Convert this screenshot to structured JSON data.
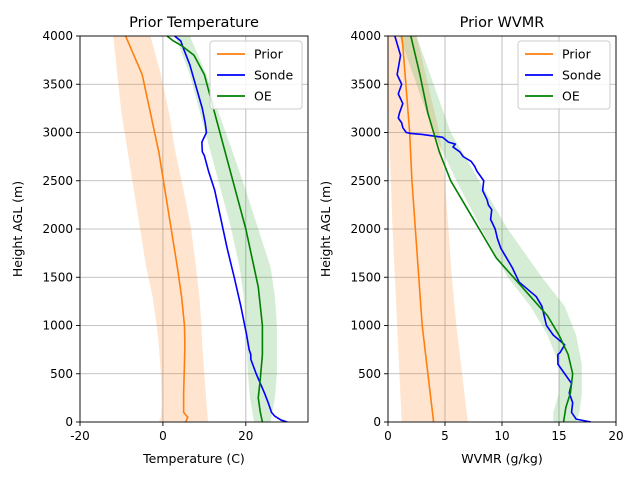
{
  "chart_data": [
    {
      "type": "line",
      "title": "Prior Temperature",
      "xlabel": "Temperature (C)",
      "ylabel": "Height AGL (m)",
      "xlim": [
        -20,
        35
      ],
      "ylim": [
        0,
        4000
      ],
      "xticks": [
        -20,
        0,
        20
      ],
      "yticks": [
        0,
        500,
        1000,
        1500,
        2000,
        2500,
        3000,
        3500,
        4000
      ],
      "grid": true,
      "legend": "top-right",
      "bands": [
        {
          "series": "Prior",
          "color": "#ff7f0e",
          "opacity": 0.2,
          "points": [
            [
              -1.0,
              0,
              11.0
            ],
            [
              -0.5,
              50,
              10.8
            ],
            [
              -0.3,
              200,
              10.5
            ],
            [
              -0.5,
              500,
              10.0
            ],
            [
              -1.0,
              800,
              9.5
            ],
            [
              -1.5,
              1000,
              9.3
            ],
            [
              -2.5,
              1300,
              8.8
            ],
            [
              -4.0,
              1600,
              8.0
            ],
            [
              -5.5,
              2000,
              6.8
            ],
            [
              -7.0,
              2400,
              5.0
            ],
            [
              -8.5,
              2800,
              3.0
            ],
            [
              -10.0,
              3200,
              1.5
            ],
            [
              -11.0,
              3600,
              -0.5
            ],
            [
              -12.0,
              4000,
              -3.0
            ]
          ]
        },
        {
          "series": "OE",
          "color": "#2ca02c",
          "opacity": 0.2,
          "points": [
            [
              22.0,
              0,
              26.0
            ],
            [
              21.0,
              250,
              27.0
            ],
            [
              20.5,
              500,
              27.5
            ],
            [
              20.0,
              1000,
              27.5
            ],
            [
              19.5,
              1300,
              27.0
            ],
            [
              18.5,
              1600,
              26.0
            ],
            [
              16.5,
              2000,
              23.0
            ],
            [
              14.0,
              2400,
              20.0
            ],
            [
              11.5,
              2800,
              16.8
            ],
            [
              9.0,
              3200,
              13.5
            ],
            [
              6.5,
              3600,
              10.5
            ],
            [
              3.0,
              4000,
              6.5
            ]
          ]
        }
      ],
      "series": [
        {
          "name": "Prior",
          "color": "#ff7f0e",
          "x": [
            5.5,
            6.0,
            5.0,
            5.0,
            5.2,
            5.3,
            5.2,
            4.5,
            3.5,
            2.0,
            0.5,
            -1.0,
            -3.0,
            -5.0,
            -7.0,
            -9.0
          ],
          "y": [
            0,
            50,
            100,
            300,
            600,
            800,
            1000,
            1300,
            1600,
            2000,
            2400,
            2800,
            3200,
            3600,
            3800,
            4000
          ]
        },
        {
          "name": "Sonde",
          "color": "#0000ff",
          "x": [
            30.0,
            28.5,
            27.0,
            26.2,
            25.4,
            24.5,
            23.5,
            22.5,
            21.2,
            21.2,
            20.8,
            20.2,
            18.8,
            17.2,
            15.5,
            14.0,
            12.5,
            11.0,
            10.0,
            9.5,
            9.4,
            10.5,
            10.2,
            9.5,
            8.5,
            7.5,
            6.5,
            4.7,
            4.3,
            2.8
          ],
          "y": [
            0,
            20,
            60,
            100,
            200,
            300,
            400,
            500,
            650,
            700,
            750,
            900,
            1200,
            1500,
            1800,
            2100,
            2400,
            2600,
            2760,
            2800,
            2900,
            3000,
            3100,
            3250,
            3400,
            3550,
            3700,
            3900,
            3950,
            4000
          ]
        },
        {
          "name": "OE",
          "color": "#008000",
          "x": [
            24.0,
            23.5,
            23.0,
            23.5,
            24.0,
            24.0,
            23.5,
            23.0,
            22.0,
            20.0,
            17.5,
            15.0,
            12.5,
            10.0,
            7.5,
            4.5,
            2.5,
            1.0
          ],
          "y": [
            0,
            100,
            250,
            450,
            700,
            1000,
            1200,
            1400,
            1600,
            2000,
            2400,
            2800,
            3200,
            3600,
            3800,
            3900,
            3950,
            4000
          ]
        }
      ]
    },
    {
      "type": "line",
      "title": "Prior WVMR",
      "xlabel": "WVMR (g/kg)",
      "ylabel": "Height AGL (m)",
      "xlim": [
        0,
        20
      ],
      "ylim": [
        0,
        4000
      ],
      "xticks": [
        0,
        5,
        10,
        15,
        20
      ],
      "yticks": [
        0,
        500,
        1000,
        1500,
        2000,
        2500,
        3000,
        3500,
        4000
      ],
      "grid": true,
      "legend": "top-right",
      "bands": [
        {
          "series": "Prior",
          "color": "#ff7f0e",
          "opacity": 0.2,
          "points": [
            [
              1.2,
              0,
              7.0
            ],
            [
              1.0,
              500,
              6.5
            ],
            [
              0.8,
              1000,
              6.0
            ],
            [
              0.6,
              1500,
              5.6
            ],
            [
              0.4,
              2000,
              5.3
            ],
            [
              0.25,
              2500,
              5.0
            ],
            [
              0.1,
              3000,
              4.5
            ],
            [
              0.0,
              3500,
              3.5
            ],
            [
              0.0,
              4000,
              2.5
            ]
          ]
        },
        {
          "series": "OE",
          "color": "#2ca02c",
          "opacity": 0.2,
          "points": [
            [
              14.5,
              0,
              16.5
            ],
            [
              14.5,
              100,
              16.8
            ],
            [
              15.0,
              300,
              17.0
            ],
            [
              15.0,
              600,
              17.0
            ],
            [
              14.0,
              900,
              16.5
            ],
            [
              12.5,
              1200,
              15.5
            ],
            [
              10.5,
              1500,
              13.5
            ],
            [
              8.2,
              2000,
              10.5
            ],
            [
              6.0,
              2500,
              8.0
            ],
            [
              4.0,
              3000,
              5.5
            ],
            [
              2.5,
              3500,
              4.0
            ],
            [
              1.0,
              4000,
              2.5
            ]
          ]
        }
      ],
      "series": [
        {
          "name": "Prior",
          "color": "#ff7f0e",
          "x": [
            4.0,
            3.7,
            3.3,
            3.0,
            2.7,
            2.4,
            2.1,
            1.9,
            1.7,
            1.5,
            1.3,
            1.2
          ],
          "y": [
            0,
            300,
            700,
            1000,
            1500,
            2000,
            2500,
            3000,
            3300,
            3600,
            3900,
            4000
          ]
        },
        {
          "name": "Sonde",
          "color": "#0000ff",
          "x": [
            17.8,
            16.5,
            16.1,
            16.2,
            15.9,
            16.1,
            15.5,
            14.9,
            14.9,
            15.1,
            15.5,
            14.5,
            13.9,
            13.7,
            13.5,
            13.0,
            11.5,
            10.9,
            10.4,
            9.9,
            9.6,
            9.4,
            9.0,
            9.1,
            8.8,
            8.7,
            8.3,
            8.4,
            7.8,
            7.6,
            7.3,
            6.6,
            6.3,
            5.7,
            5.9,
            5.3,
            4.8,
            3.0,
            2.0,
            1.6,
            1.3,
            1.2,
            0.9,
            1.0,
            1.3,
            0.9,
            1.2,
            0.8,
            1.1,
            0.6
          ],
          "y": [
            0,
            30,
            100,
            200,
            300,
            400,
            500,
            600,
            700,
            720,
            800,
            900,
            1000,
            1100,
            1200,
            1300,
            1450,
            1600,
            1700,
            1800,
            1900,
            2000,
            2100,
            2200,
            2250,
            2300,
            2400,
            2500,
            2600,
            2650,
            2700,
            2750,
            2800,
            2850,
            2880,
            2900,
            2950,
            2980,
            2990,
            3000,
            3050,
            3100,
            3150,
            3200,
            3300,
            3400,
            3500,
            3600,
            3800,
            4000
          ]
        },
        {
          "name": "OE",
          "color": "#008000",
          "x": [
            15.4,
            15.6,
            16.0,
            16.2,
            15.8,
            15.0,
            14.0,
            12.5,
            11.0,
            9.5,
            8.5,
            7.0,
            5.5,
            4.5,
            3.5,
            2.8,
            2.0
          ],
          "y": [
            0,
            150,
            300,
            500,
            700,
            900,
            1100,
            1300,
            1500,
            1700,
            1900,
            2200,
            2500,
            2800,
            3200,
            3600,
            4000
          ]
        }
      ]
    }
  ]
}
